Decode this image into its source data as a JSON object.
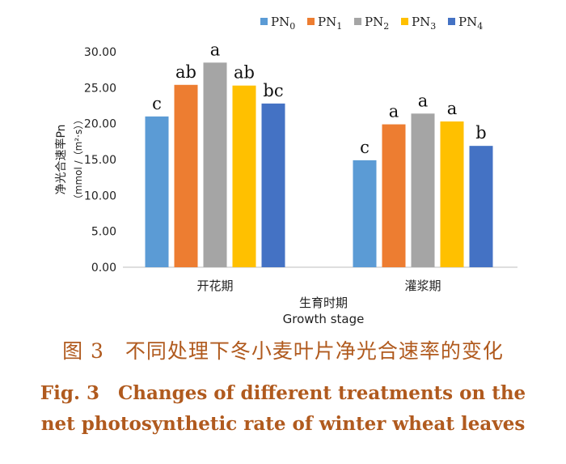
{
  "chart_data": {
    "type": "bar",
    "categories": [
      "开花期",
      "灌浆期"
    ],
    "series": [
      {
        "name": "PN0",
        "label_main": "PN",
        "label_sub": "0",
        "color": "#5b9bd5",
        "values": [
          21.0,
          14.9
        ],
        "letters": [
          "c",
          "c"
        ]
      },
      {
        "name": "PN1",
        "label_main": "PN",
        "label_sub": "1",
        "color": "#ed7d31",
        "values": [
          25.4,
          19.9
        ],
        "letters": [
          "ab",
          "a"
        ]
      },
      {
        "name": "PN2",
        "label_main": "PN",
        "label_sub": "2",
        "color": "#a5a5a5",
        "values": [
          28.5,
          21.4
        ],
        "letters": [
          "a",
          "a"
        ]
      },
      {
        "name": "PN3",
        "label_main": "PN",
        "label_sub": "3",
        "color": "#ffc000",
        "values": [
          25.3,
          20.3
        ],
        "letters": [
          "ab",
          "a"
        ]
      },
      {
        "name": "PN4",
        "label_main": "PN",
        "label_sub": "4",
        "color": "#4472c4",
        "values": [
          22.8,
          16.9
        ],
        "letters": [
          "bc",
          "b"
        ]
      }
    ],
    "ylabel_line1": "净光合速率Pn",
    "ylabel_line2": "（mmol /（m²·s））",
    "xlabel_zh": "生育时期",
    "xlabel_en": "Growth stage",
    "ylim": [
      0,
      30
    ],
    "yticks": [
      "0.00",
      "5.00",
      "10.00",
      "15.00",
      "20.00",
      "25.00",
      "30.00"
    ],
    "grid": false,
    "legend_position": "top"
  },
  "caption": {
    "zh": "图 3　不同处理下冬小麦叶片净光合速率的变化",
    "en_line1": "Fig. 3　Changes of different treatments on the",
    "en_line2": "net photosynthetic rate of winter wheat leaves"
  }
}
